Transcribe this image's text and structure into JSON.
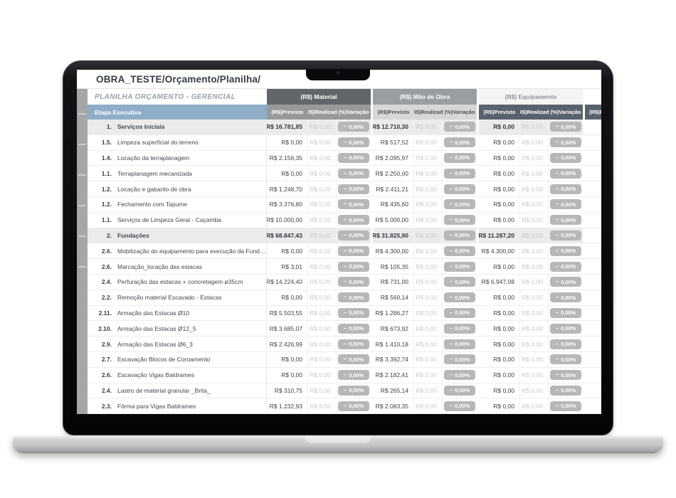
{
  "window": {
    "title": "OBRA_TESTE/Orçamento/Planilha/"
  },
  "sheet": {
    "subtitle": "PLANILHA ORÇAMENTO - GERENCIAL",
    "etapa_header": "Etapa Executiva",
    "groups": [
      {
        "label": "(R$) Material"
      },
      {
        "label": "(R$) Mão de Obra"
      },
      {
        "label": "(R$) Equipamento"
      }
    ],
    "subheaders": [
      "(R$)Previsto",
      "(R$)Realizado",
      "(%)Variação"
    ],
    "partial_group_subheader": "(R$)P",
    "variacao_icon": "minus",
    "rows": [
      {
        "num": "1.",
        "label": "Serviços Iniciais",
        "section": true,
        "cells": [
          {
            "previsto": "R$ 16.781,85",
            "realizado": "R$ 0,00",
            "variacao": "0,00%"
          },
          {
            "previsto": "R$ 12.710,30",
            "realizado": "R$ 0,00",
            "variacao": "0,00%"
          },
          {
            "previsto": "R$ 0,00",
            "realizado": "R$ 0,00",
            "variacao": "0,00%"
          }
        ]
      },
      {
        "num": "1.5.",
        "label": "Limpeza superficial do terreno",
        "section": false,
        "cells": [
          {
            "previsto": "R$ 0,00",
            "realizado": "R$ 0,00",
            "variacao": "0,00%"
          },
          {
            "previsto": "R$ 517,52",
            "realizado": "R$ 0,00",
            "variacao": "0,00%"
          },
          {
            "previsto": "R$ 0,00",
            "realizado": "R$ 0,00",
            "variacao": "0,00%"
          }
        ]
      },
      {
        "num": "1.4.",
        "label": "Locação da terraplanagem",
        "section": false,
        "cells": [
          {
            "previsto": "R$ 2.156,35",
            "realizado": "R$ 0,00",
            "variacao": "0,00%"
          },
          {
            "previsto": "R$ 2.095,97",
            "realizado": "R$ 0,00",
            "variacao": "0,00%"
          },
          {
            "previsto": "R$ 0,00",
            "realizado": "R$ 0,00",
            "variacao": "0,00%"
          }
        ]
      },
      {
        "num": "1.1.",
        "label": "Terraplanagem mecanizada",
        "section": false,
        "cells": [
          {
            "previsto": "R$ 0,00",
            "realizado": "R$ 0,00",
            "variacao": "0,00%"
          },
          {
            "previsto": "R$ 2.250,00",
            "realizado": "R$ 0,00",
            "variacao": "0,00%"
          },
          {
            "previsto": "R$ 0,00",
            "realizado": "R$ 0,00",
            "variacao": "0,00%"
          }
        ]
      },
      {
        "num": "1.2.",
        "label": "Locação e gabarito de obra",
        "section": false,
        "cells": [
          {
            "previsto": "R$ 1.248,70",
            "realizado": "R$ 0,00",
            "variacao": "0,00%"
          },
          {
            "previsto": "R$ 2.411,21",
            "realizado": "R$ 0,00",
            "variacao": "0,00%"
          },
          {
            "previsto": "R$ 0,00",
            "realizado": "R$ 0,00",
            "variacao": "0,00%"
          }
        ]
      },
      {
        "num": "1.2.",
        "label": "Fechamento com Tapume",
        "section": false,
        "cells": [
          {
            "previsto": "R$ 3.376,80",
            "realizado": "R$ 0,00",
            "variacao": "0,00%"
          },
          {
            "previsto": "R$ 435,60",
            "realizado": "R$ 0,00",
            "variacao": "0,00%"
          },
          {
            "previsto": "R$ 0,00",
            "realizado": "R$ 0,00",
            "variacao": "0,00%"
          }
        ]
      },
      {
        "num": "1.1.",
        "label": "Serviços de Limpeza Geral - Caçamba",
        "section": false,
        "cells": [
          {
            "previsto": "R$ 10.000,00",
            "realizado": "R$ 0,00",
            "variacao": "0,00%"
          },
          {
            "previsto": "R$ 5.000,00",
            "realizado": "R$ 0,00",
            "variacao": "0,00%"
          },
          {
            "previsto": "R$ 0,00",
            "realizado": "R$ 0,00",
            "variacao": "0,00%"
          }
        ]
      },
      {
        "num": "2.",
        "label": "Fundações",
        "section": true,
        "cells": [
          {
            "previsto": "R$ 68.847,43",
            "realizado": "R$ 0,00",
            "variacao": "0,00%"
          },
          {
            "previsto": "R$ 31.825,90",
            "realizado": "R$ 0,00",
            "variacao": "0,00%"
          },
          {
            "previsto": "R$ 11.287,20",
            "realizado": "R$ 0,00",
            "variacao": "0,00%"
          }
        ]
      },
      {
        "num": "2.6.",
        "label": "Mobilização do equipamento para execução da Fundação",
        "section": false,
        "cells": [
          {
            "previsto": "R$ 0,00",
            "realizado": "R$ 0,00",
            "variacao": "0,00%"
          },
          {
            "previsto": "R$ 4.300,00",
            "realizado": "R$ 0,00",
            "variacao": "0,00%"
          },
          {
            "previsto": "R$ 4.300,00",
            "realizado": "R$ 0,00",
            "variacao": "0,00%"
          }
        ]
      },
      {
        "num": "2.6.",
        "label": "Marcação_locação das estacas",
        "section": false,
        "cells": [
          {
            "previsto": "R$ 3,01",
            "realizado": "R$ 0,00",
            "variacao": "0,00%"
          },
          {
            "previsto": "R$ 105,35",
            "realizado": "R$ 0,00",
            "variacao": "0,00%"
          },
          {
            "previsto": "R$ 0,00",
            "realizado": "R$ 0,00",
            "variacao": "0,00%"
          }
        ]
      },
      {
        "num": "2.4.",
        "label": "Perfuração das estacas + concretagem ø35cm",
        "section": false,
        "cells": [
          {
            "previsto": "R$ 14.224,40",
            "realizado": "R$ 0,00",
            "variacao": "0,00%"
          },
          {
            "previsto": "R$ 731,00",
            "realizado": "R$ 0,00",
            "variacao": "0,00%"
          },
          {
            "previsto": "R$ 6.947,08",
            "realizado": "R$ 0,00",
            "variacao": "0,00%"
          }
        ]
      },
      {
        "num": "2.2.",
        "label": "Remoção material Escavado - Estacas",
        "section": false,
        "cells": [
          {
            "previsto": "R$ 0,00",
            "realizado": "R$ 0,00",
            "variacao": "0,00%"
          },
          {
            "previsto": "R$ 560,14",
            "realizado": "R$ 0,00",
            "variacao": "0,00%"
          },
          {
            "previsto": "R$ 0,00",
            "realizado": "R$ 0,00",
            "variacao": "0,00%"
          }
        ]
      },
      {
        "num": "2.11.",
        "label": "Armação das Estacas Ø10",
        "section": false,
        "cells": [
          {
            "previsto": "R$ 5.503,55",
            "realizado": "R$ 0,00",
            "variacao": "0,00%"
          },
          {
            "previsto": "R$ 1.286,27",
            "realizado": "R$ 0,00",
            "variacao": "0,00%"
          },
          {
            "previsto": "R$ 0,00",
            "realizado": "R$ 0,00",
            "variacao": "0,00%"
          }
        ]
      },
      {
        "num": "2.10.",
        "label": "Armação das Estacas Ø12_5",
        "section": false,
        "cells": [
          {
            "previsto": "R$ 3.685,07",
            "realizado": "R$ 0,00",
            "variacao": "0,00%"
          },
          {
            "previsto": "R$ 673,92",
            "realizado": "R$ 0,00",
            "variacao": "0,00%"
          },
          {
            "previsto": "R$ 0,00",
            "realizado": "R$ 0,00",
            "variacao": "0,00%"
          }
        ]
      },
      {
        "num": "2.9.",
        "label": "Armação das Estacas Ø6_3",
        "section": false,
        "cells": [
          {
            "previsto": "R$ 2.426,99",
            "realizado": "R$ 0,00",
            "variacao": "0,00%"
          },
          {
            "previsto": "R$ 1.410,18",
            "realizado": "R$ 0,00",
            "variacao": "0,00%"
          },
          {
            "previsto": "R$ 0,00",
            "realizado": "R$ 0,00",
            "variacao": "0,00%"
          }
        ]
      },
      {
        "num": "2.7.",
        "label": "Escavação Blocos de Coroamento",
        "section": false,
        "cells": [
          {
            "previsto": "R$ 0,00",
            "realizado": "R$ 0,00",
            "variacao": "0,00%"
          },
          {
            "previsto": "R$ 3.392,74",
            "realizado": "R$ 0,00",
            "variacao": "0,00%"
          },
          {
            "previsto": "R$ 0,00",
            "realizado": "R$ 0,00",
            "variacao": "0,00%"
          }
        ]
      },
      {
        "num": "2.6.",
        "label": "Escavação Vigas Baldrames",
        "section": false,
        "cells": [
          {
            "previsto": "R$ 0,00",
            "realizado": "R$ 0,00",
            "variacao": "0,00%"
          },
          {
            "previsto": "R$ 2.182,41",
            "realizado": "R$ 0,00",
            "variacao": "0,00%"
          },
          {
            "previsto": "R$ 0,00",
            "realizado": "R$ 0,00",
            "variacao": "0,00%"
          }
        ]
      },
      {
        "num": "2.4.",
        "label": "Lastro de material granular _Brita_",
        "section": false,
        "cells": [
          {
            "previsto": "R$ 310,75",
            "realizado": "R$ 0,00",
            "variacao": "0,00%"
          },
          {
            "previsto": "R$ 265,14",
            "realizado": "R$ 0,00",
            "variacao": "0,00%"
          },
          {
            "previsto": "R$ 0,00",
            "realizado": "R$ 0,00",
            "variacao": "0,00%"
          }
        ]
      },
      {
        "num": "2.3.",
        "label": "Fôrma para Vigas Baldrames",
        "section": false,
        "cells": [
          {
            "previsto": "R$ 1.232,93",
            "realizado": "R$ 0,00",
            "variacao": "0,00%"
          },
          {
            "previsto": "R$ 2.083,35",
            "realizado": "R$ 0,00",
            "variacao": "0,00%"
          },
          {
            "previsto": "R$ 0,00",
            "realizado": "R$ 0,00",
            "variacao": "0,00%"
          }
        ]
      }
    ]
  },
  "colors": {
    "etapa_header_bg": "#8fadc6",
    "group_material_bg": "#636669",
    "group_mao_de_obra_bg": "#9b9ea1",
    "group_equipamento_bg": "#f4f4f5",
    "subheader_material_bg": "#97999b",
    "subheader_mao_de_obra_bg": "#d6d7d8",
    "subheader_equipamento_bg": "#59626c",
    "badge_bg": "#b7b7b9",
    "section_row_bg": "#ebebed",
    "realizado_text": "#c9c9cb"
  }
}
